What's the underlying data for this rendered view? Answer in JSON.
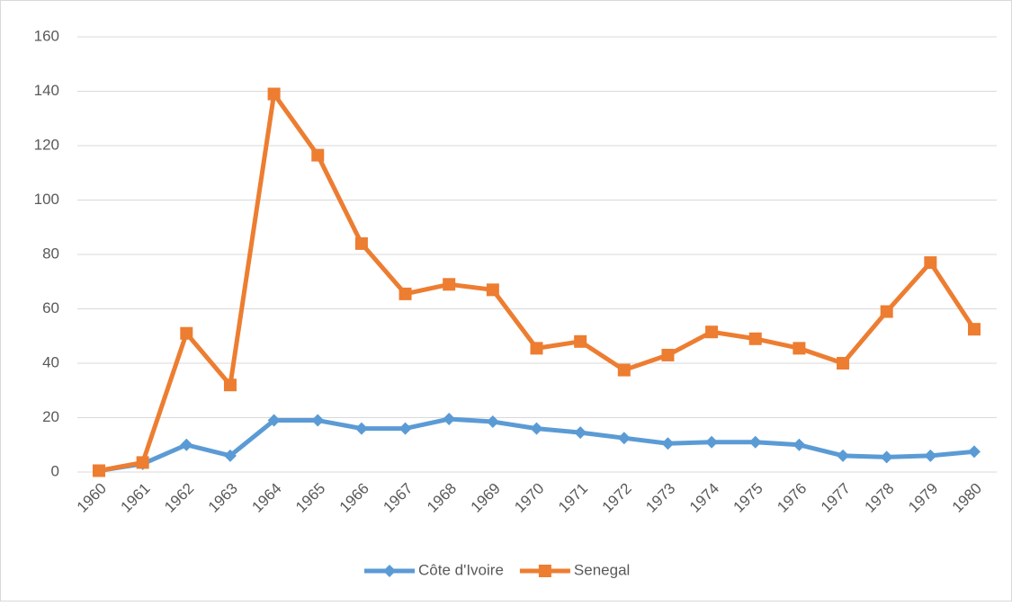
{
  "chart_data": {
    "type": "line",
    "categories": [
      "1960",
      "1961",
      "1962",
      "1963",
      "1964",
      "1965",
      "1966",
      "1967",
      "1968",
      "1969",
      "1970",
      "1971",
      "1972",
      "1973",
      "1974",
      "1975",
      "1976",
      "1977",
      "1978",
      "1979",
      "1980"
    ],
    "series": [
      {
        "name": "Côte d'Ivoire",
        "color": "#5b9bd5",
        "marker": "diamond",
        "values": [
          0.5,
          3,
          10,
          6,
          19,
          19,
          16,
          16,
          19.5,
          18.5,
          16,
          14.5,
          12.5,
          10.5,
          11,
          11,
          10,
          6,
          5.5,
          6,
          7.5
        ]
      },
      {
        "name": "Senegal",
        "color": "#ed7d31",
        "marker": "square",
        "values": [
          0.5,
          3.5,
          51,
          32,
          139,
          116.5,
          84,
          65.5,
          69,
          67,
          45.5,
          48,
          37.5,
          43,
          51.5,
          49,
          45.5,
          40,
          59,
          77,
          52.5
        ]
      }
    ],
    "ylim": [
      0,
      160
    ],
    "yticks": [
      0,
      20,
      40,
      60,
      80,
      100,
      120,
      140,
      160
    ],
    "grid": true,
    "legend": "bottom"
  }
}
